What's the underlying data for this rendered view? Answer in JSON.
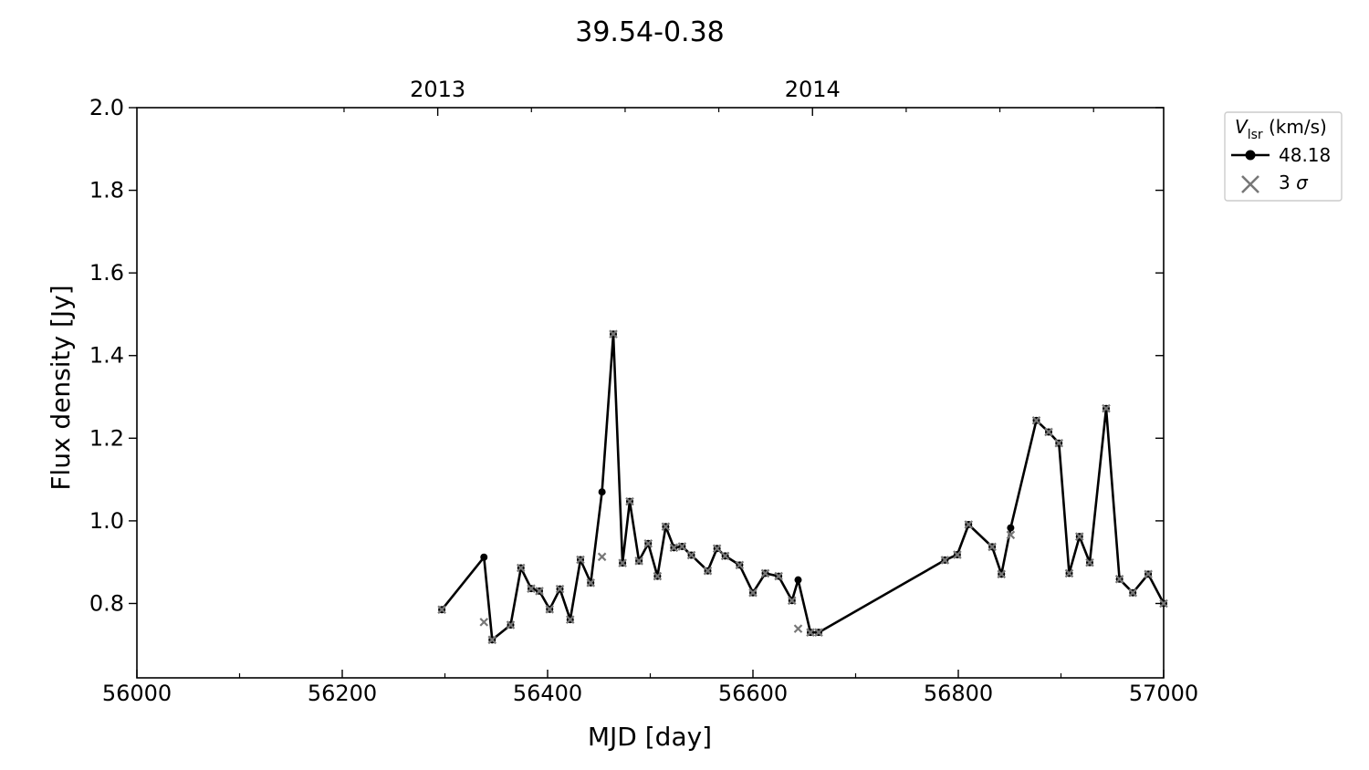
{
  "chart_data": {
    "type": "line",
    "title": "39.54-0.38",
    "xlabel": "MJD [day]",
    "ylabel": "Flux density [Jy]",
    "xlim": [
      56000,
      57000
    ],
    "ylim": [
      0.62,
      2.0
    ],
    "x_ticks": [
      "56000",
      "56200",
      "56400",
      "56600",
      "56800",
      "57000"
    ],
    "y_ticks": [
      "0.8",
      "1.0",
      "1.2",
      "1.4",
      "1.6",
      "1.8",
      "2.0"
    ],
    "top_axis": {
      "ticks": [
        {
          "x": 56293,
          "label": "2013"
        },
        {
          "x": 56658,
          "label": "2014"
        }
      ]
    },
    "grid": false,
    "legend": {
      "position": "outside-top-right",
      "title_main": "V",
      "title_sub": "lsr",
      "title_unit": " (km/s)",
      "entries": [
        {
          "label": "48.18",
          "marker": "circle-line",
          "color": "#000000"
        },
        {
          "label": "3 ",
          "label_symbol": "σ",
          "marker": "x",
          "color": "#777777"
        }
      ]
    },
    "series": [
      {
        "name": "48.18",
        "color": "#000000",
        "x": [
          56297,
          56338,
          56346,
          56364,
          56374,
          56384,
          56392,
          56402,
          56412,
          56422,
          56432,
          56442,
          56453,
          56464,
          56473,
          56480,
          56489,
          56498,
          56507,
          56515,
          56523,
          56531,
          56540,
          56556,
          56565,
          56573,
          56587,
          56600,
          56612,
          56625,
          56638,
          56644,
          56656,
          56664,
          56787,
          56799,
          56810,
          56833,
          56842,
          56851,
          56876,
          56888,
          56898,
          56908,
          56918,
          56928,
          56944,
          56957,
          56970,
          56985,
          57000
        ],
        "y": [
          0.785,
          0.912,
          0.712,
          0.748,
          0.886,
          0.836,
          0.83,
          0.786,
          0.835,
          0.761,
          0.906,
          0.85,
          1.07,
          1.452,
          0.898,
          1.047,
          0.903,
          0.945,
          0.866,
          0.986,
          0.935,
          0.938,
          0.917,
          0.879,
          0.933,
          0.915,
          0.893,
          0.826,
          0.873,
          0.866,
          0.807,
          0.857,
          0.73,
          0.73,
          0.905,
          0.918,
          0.991,
          0.937,
          0.871,
          0.983,
          1.243,
          1.215,
          1.188,
          0.873,
          0.962,
          0.899,
          1.272,
          0.859,
          0.826,
          0.871,
          0.8
        ]
      },
      {
        "name": "3 σ",
        "color": "#777777",
        "x": [
          56297,
          56338,
          56346,
          56364,
          56374,
          56384,
          56392,
          56402,
          56412,
          56422,
          56432,
          56442,
          56453,
          56464,
          56473,
          56480,
          56489,
          56498,
          56507,
          56515,
          56523,
          56531,
          56540,
          56556,
          56565,
          56573,
          56587,
          56600,
          56612,
          56625,
          56638,
          56644,
          56656,
          56664,
          56787,
          56799,
          56810,
          56833,
          56842,
          56851,
          56876,
          56888,
          56898,
          56908,
          56918,
          56928,
          56944,
          56957,
          56970,
          56985,
          57000
        ],
        "y": [
          0.785,
          0.755,
          0.712,
          0.748,
          0.886,
          0.836,
          0.83,
          0.786,
          0.835,
          0.761,
          0.906,
          0.85,
          0.913,
          1.452,
          0.898,
          1.047,
          0.903,
          0.945,
          0.866,
          0.986,
          0.935,
          0.938,
          0.917,
          0.879,
          0.933,
          0.915,
          0.893,
          0.826,
          0.873,
          0.866,
          0.807,
          0.739,
          0.73,
          0.73,
          0.905,
          0.918,
          0.991,
          0.937,
          0.871,
          0.966,
          1.243,
          1.215,
          1.188,
          0.873,
          0.962,
          0.899,
          1.272,
          0.859,
          0.826,
          0.871,
          0.8
        ]
      }
    ]
  }
}
